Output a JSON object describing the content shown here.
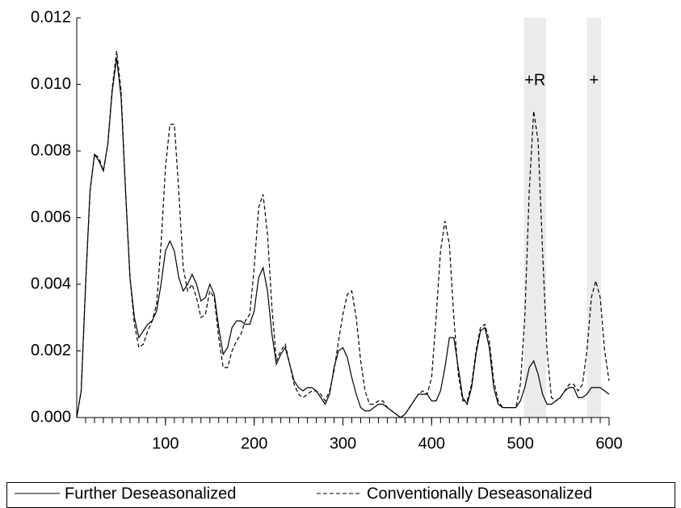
{
  "chart_data": {
    "type": "line",
    "x": [
      0,
      5,
      10,
      15,
      20,
      25,
      30,
      35,
      40,
      45,
      50,
      55,
      60,
      65,
      70,
      75,
      80,
      85,
      90,
      95,
      100,
      105,
      110,
      115,
      120,
      125,
      130,
      135,
      140,
      145,
      150,
      155,
      160,
      165,
      170,
      175,
      180,
      185,
      190,
      195,
      200,
      205,
      210,
      215,
      220,
      225,
      230,
      235,
      240,
      245,
      250,
      255,
      260,
      265,
      270,
      275,
      280,
      285,
      290,
      295,
      300,
      305,
      310,
      315,
      320,
      325,
      330,
      335,
      340,
      345,
      350,
      355,
      360,
      365,
      370,
      375,
      380,
      385,
      390,
      395,
      400,
      405,
      410,
      415,
      420,
      425,
      430,
      435,
      440,
      445,
      450,
      455,
      460,
      465,
      470,
      475,
      480,
      485,
      490,
      495,
      500,
      505,
      510,
      515,
      520,
      525,
      530,
      535,
      540,
      545,
      550,
      555,
      560,
      565,
      570,
      575,
      580,
      585,
      590,
      595,
      600
    ],
    "series": [
      {
        "name": "Further Deseasonalized",
        "color": "#000000",
        "dash": "solid",
        "values": [
          0,
          0.0008,
          0.004,
          0.0068,
          0.0079,
          0.0077,
          0.0074,
          0.0082,
          0.0098,
          0.0108,
          0.0096,
          0.0068,
          0.0042,
          0.003,
          0.0024,
          0.0026,
          0.0028,
          0.0029,
          0.0032,
          0.004,
          0.005,
          0.0053,
          0.005,
          0.0042,
          0.0038,
          0.004,
          0.0043,
          0.004,
          0.0035,
          0.0036,
          0.004,
          0.0037,
          0.0027,
          0.0019,
          0.0021,
          0.0027,
          0.0029,
          0.0029,
          0.0028,
          0.0028,
          0.0032,
          0.0042,
          0.0045,
          0.0038,
          0.0025,
          0.0016,
          0.0019,
          0.0021,
          0.0016,
          0.0011,
          0.0009,
          0.0008,
          0.0009,
          0.0009,
          0.0008,
          0.0006,
          0.0004,
          0.0007,
          0.0015,
          0.002,
          0.0021,
          0.0018,
          0.0012,
          0.0007,
          0.0003,
          0.0002,
          0.0002,
          0.0003,
          0.0004,
          0.0004,
          0.0003,
          0.0002,
          0.0001,
          0,
          0.0001,
          0.0003,
          0.0005,
          0.0007,
          0.0007,
          0.0007,
          0.0005,
          0.0005,
          0.0008,
          0.0015,
          0.0024,
          0.0024,
          0.0015,
          0.0006,
          0.0004,
          0.0009,
          0.0019,
          0.0026,
          0.0027,
          0.0021,
          0.0009,
          0.0004,
          0.0003,
          0.0003,
          0.0003,
          0.0003,
          0.0005,
          0.0009,
          0.0015,
          0.0017,
          0.0013,
          0.0007,
          0.0004,
          0.0004,
          0.0005,
          0.0006,
          0.0008,
          0.0009,
          0.0009,
          0.0006,
          0.0006,
          0.0007,
          0.0009,
          0.0009,
          0.0009,
          0.0008,
          0.0007
        ]
      },
      {
        "name": "Conventionally Deseasonalized",
        "color": "#000000",
        "dash": "dashed",
        "values": [
          0,
          0.0008,
          0.004,
          0.0068,
          0.0079,
          0.0078,
          0.0074,
          0.0082,
          0.0099,
          0.011,
          0.0098,
          0.0068,
          0.0042,
          0.0028,
          0.0021,
          0.0022,
          0.0026,
          0.0029,
          0.0034,
          0.0052,
          0.0075,
          0.0088,
          0.0088,
          0.0068,
          0.0045,
          0.0038,
          0.004,
          0.0036,
          0.003,
          0.0031,
          0.0038,
          0.0036,
          0.0024,
          0.0015,
          0.0015,
          0.002,
          0.0023,
          0.0025,
          0.0029,
          0.0031,
          0.0045,
          0.0063,
          0.0067,
          0.0055,
          0.0033,
          0.0017,
          0.002,
          0.0022,
          0.0016,
          0.001,
          0.0007,
          0.0006,
          0.0007,
          0.0008,
          0.0008,
          0.0007,
          0.0005,
          0.0008,
          0.0014,
          0.0023,
          0.0031,
          0.0037,
          0.0038,
          0.003,
          0.0017,
          0.0008,
          0.0004,
          0.0004,
          0.0005,
          0.0005,
          0.0003,
          0.0002,
          0.0001,
          0,
          0.0001,
          0.0003,
          0.0005,
          0.0007,
          0.0008,
          0.0007,
          0.0012,
          0.003,
          0.005,
          0.0059,
          0.0052,
          0.003,
          0.0013,
          0.0005,
          0.0005,
          0.001,
          0.002,
          0.0027,
          0.0028,
          0.0023,
          0.0011,
          0.0005,
          0.0003,
          0.0003,
          0.0003,
          0.0003,
          0.001,
          0.003,
          0.0068,
          0.0092,
          0.0083,
          0.005,
          0.002,
          0.0006,
          0.0005,
          0.0006,
          0.0008,
          0.001,
          0.001,
          0.0008,
          0.001,
          0.002,
          0.0036,
          0.0041,
          0.0036,
          0.002,
          0.0011
        ]
      }
    ],
    "xlim": [
      0,
      600
    ],
    "xticks": [
      100,
      200,
      300,
      400,
      500,
      600
    ],
    "xminorticks": [
      10,
      20,
      30,
      40,
      50,
      60,
      70,
      80,
      90,
      100,
      110,
      120,
      130,
      140,
      150,
      160,
      170,
      180,
      190,
      200,
      210,
      220,
      230,
      240,
      250,
      260,
      270,
      280,
      290,
      300,
      310,
      320,
      330,
      340,
      350,
      360,
      370,
      380,
      390,
      400,
      410,
      420,
      430,
      440,
      450,
      460,
      470,
      480,
      490,
      500,
      510,
      520,
      530,
      540,
      550,
      560,
      570,
      580,
      590,
      600
    ],
    "ylim": [
      0,
      0.012
    ],
    "yticks": [
      {
        "value": 0,
        "label": "0.000"
      },
      {
        "value": 0.002,
        "label": "0.002"
      },
      {
        "value": 0.004,
        "label": "0.004"
      },
      {
        "value": 0.006,
        "label": "0.006"
      },
      {
        "value": 0.008,
        "label": "0.008"
      },
      {
        "value": 0.01,
        "label": "0.010"
      },
      {
        "value": 0.012,
        "label": "0.012"
      }
    ],
    "shaded_regions": [
      {
        "x": [
          504,
          529
        ],
        "label": "+R",
        "color": "#ebebeb"
      },
      {
        "x": [
          575,
          591
        ],
        "label": "+",
        "color": "#ebebeb"
      }
    ],
    "legend": "bottom"
  }
}
